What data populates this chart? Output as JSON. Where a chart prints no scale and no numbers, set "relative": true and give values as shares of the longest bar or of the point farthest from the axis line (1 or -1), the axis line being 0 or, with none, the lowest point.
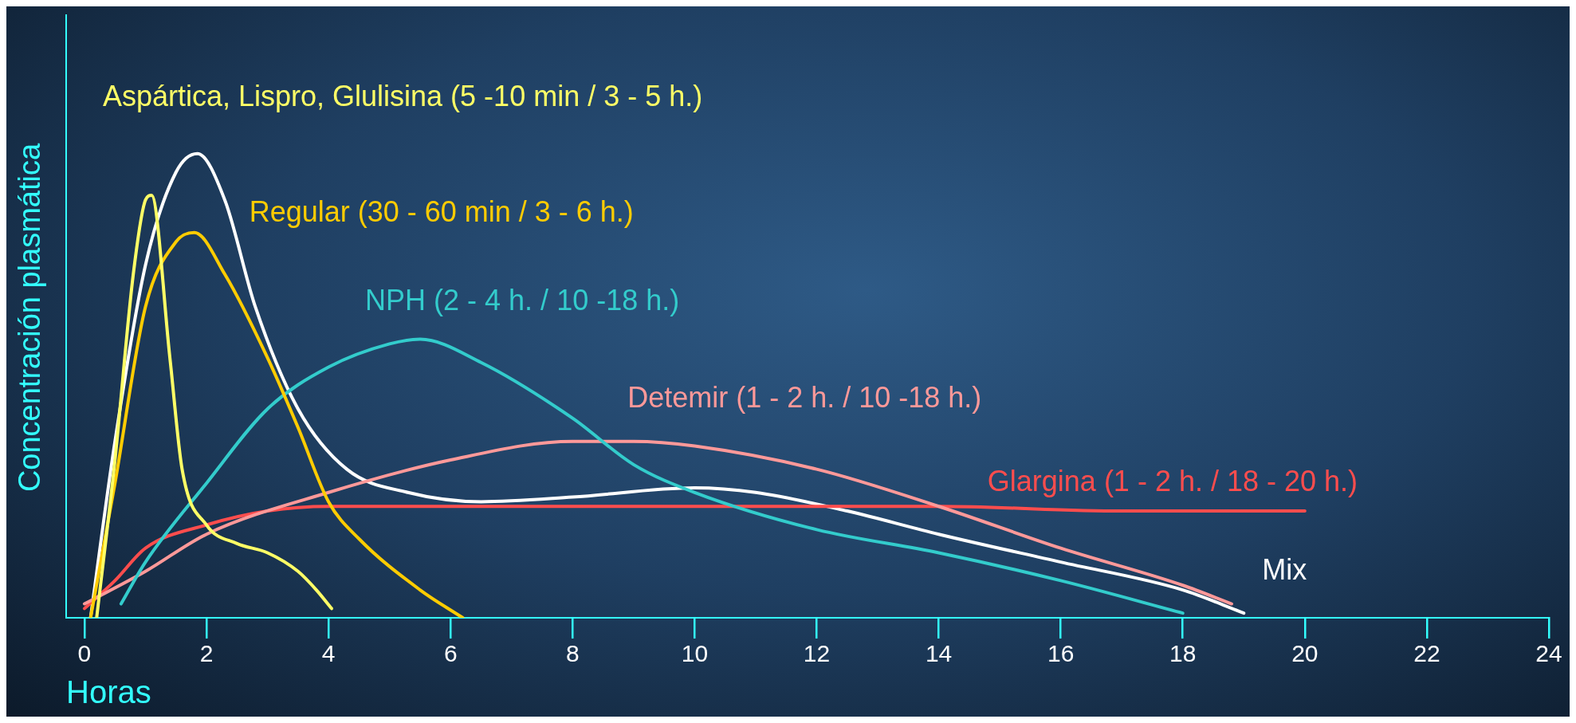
{
  "chart_data": {
    "type": "line",
    "relative": true,
    "xlabel": "Horas",
    "ylabel": "Concentración plasmática",
    "xlim": [
      -0.3,
      24
    ],
    "xticks": [
      0,
      2,
      4,
      6,
      8,
      10,
      12,
      14,
      16,
      18,
      20,
      22,
      24
    ],
    "grid": false,
    "legend": false,
    "marker": "none",
    "line_style": "solid",
    "series": [
      {
        "name": "Aspártica, Lispro, Glulisina (5 -10 min / 3 - 5 h.)",
        "color": "#ffff66",
        "x": [
          0.2,
          0.5,
          0.8,
          1.0,
          1.1,
          1.4,
          1.6,
          2,
          2.5,
          3,
          3.5,
          3.8,
          4.05
        ],
        "values": [
          0,
          0.34,
          0.74,
          0.9,
          0.91,
          0.56,
          0.32,
          0.2,
          0.16,
          0.14,
          0.1,
          0.06,
          0.02
        ]
      },
      {
        "name": "Regular (30 - 60 min / 3 - 6 h.)",
        "color": "#ffcc00",
        "x": [
          0.1,
          0.5,
          1,
          1.5,
          1.8,
          2.3,
          3,
          3.5,
          4,
          4.5,
          5.5,
          6.2
        ],
        "values": [
          0,
          0.29,
          0.67,
          0.81,
          0.83,
          0.74,
          0.56,
          0.41,
          0.25,
          0.17,
          0.06,
          0
        ]
      },
      {
        "name": "NPH (2 - 4 h. / 10 -18 h.)",
        "color": "#33cccc",
        "x": [
          0.6,
          1,
          2,
          3,
          4,
          5,
          5.5,
          6.5,
          8,
          9,
          10,
          12,
          14,
          16,
          18
        ],
        "values": [
          0.03,
          0.12,
          0.29,
          0.45,
          0.54,
          0.59,
          0.6,
          0.55,
          0.43,
          0.33,
          0.27,
          0.19,
          0.14,
          0.08,
          0.01
        ]
      },
      {
        "name": "Detemir (1 - 2 h. / 10 -18 h.)",
        "color": "#ff9999",
        "x": [
          0,
          1,
          2,
          4,
          6,
          8,
          9,
          10,
          12,
          14,
          16,
          18,
          18.8
        ],
        "values": [
          0.03,
          0.1,
          0.18,
          0.27,
          0.34,
          0.38,
          0.38,
          0.37,
          0.32,
          0.24,
          0.15,
          0.07,
          0.03
        ]
      },
      {
        "name": "Glargina (1 - 2 h. / 18 - 20 h.)",
        "color": "#ff4d4d",
        "x": [
          0,
          0.5,
          1,
          2,
          3,
          4,
          6,
          10,
          14,
          17,
          20
        ],
        "values": [
          0.02,
          0.08,
          0.15,
          0.2,
          0.23,
          0.24,
          0.24,
          0.24,
          0.24,
          0.23,
          0.23
        ]
      },
      {
        "name": "Mix",
        "color": "#ffffff",
        "x": [
          0.1,
          0.5,
          1,
          1.5,
          1.85,
          2.3,
          2.8,
          3.5,
          4.3,
          5.3,
          6.5,
          8,
          10,
          11,
          12.5,
          14,
          16,
          18,
          19
        ],
        "values": [
          0,
          0.38,
          0.76,
          0.96,
          1.0,
          0.9,
          0.67,
          0.45,
          0.32,
          0.27,
          0.25,
          0.26,
          0.28,
          0.27,
          0.23,
          0.18,
          0.12,
          0.06,
          0.01
        ]
      }
    ]
  }
}
